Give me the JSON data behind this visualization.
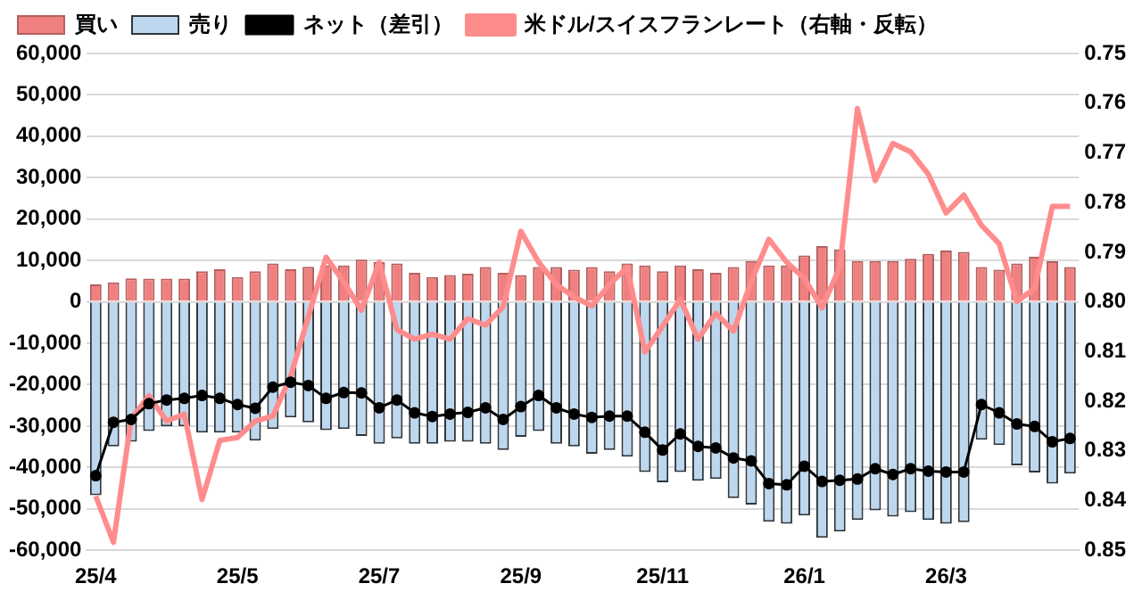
{
  "chart_data": {
    "type": "bar",
    "stacked": true,
    "legend": "top",
    "grid": "y",
    "categories": [
      "25/4",
      null,
      null,
      null,
      null,
      null,
      null,
      null,
      "25/5",
      null,
      null,
      null,
      null,
      null,
      null,
      null,
      "25/7",
      null,
      null,
      null,
      null,
      null,
      null,
      null,
      "25/9",
      null,
      null,
      null,
      null,
      null,
      null,
      null,
      "25/11",
      null,
      null,
      null,
      null,
      null,
      null,
      null,
      "26/1",
      null,
      null,
      null,
      null,
      null,
      null,
      null,
      "26/3",
      null,
      null,
      null,
      null,
      null,
      null,
      null
    ],
    "ylim": [
      -60000,
      60000
    ],
    "yticks": [
      {
        "value": -60000,
        "label": "-60,000"
      },
      {
        "value": -50000,
        "label": "-50,000"
      },
      {
        "value": -40000,
        "label": "-40,000"
      },
      {
        "value": -30000,
        "label": "-30,000"
      },
      {
        "value": -20000,
        "label": "-20,000"
      },
      {
        "value": -10000,
        "label": "-10,000"
      },
      0,
      {
        "value": 10000,
        "label": "10,000"
      },
      {
        "value": 20000,
        "label": "20,000"
      },
      {
        "value": 30000,
        "label": "30,000"
      },
      {
        "value": 40000,
        "label": "40,000"
      },
      {
        "value": 50000,
        "label": "50,000"
      },
      {
        "value": 60000,
        "label": "60,000"
      }
    ],
    "y2lim": [
      0.85,
      0.75
    ],
    "y2ticks": [
      0.75,
      0.76,
      0.77,
      0.78,
      0.79,
      {
        "value": 0.8,
        "label": "0.80"
      },
      0.81,
      0.82,
      0.83,
      0.84,
      0.85
    ],
    "series": [
      {
        "name": "買い",
        "color": "#f08080",
        "values": [
          4200,
          4700,
          5700,
          5600,
          5600,
          5600,
          7400,
          7900,
          6000,
          7400,
          9300,
          7900,
          8500,
          8800,
          8800,
          10200,
          9600,
          9300,
          7000,
          6000,
          6500,
          6800,
          8400,
          7000,
          6500,
          8400,
          8400,
          7800,
          8400,
          7400,
          9300,
          8800,
          7400,
          8800,
          7900,
          7000,
          8400,
          9900,
          8800,
          8800,
          11200,
          13500,
          12700,
          9900,
          9900,
          9900,
          10400,
          11600,
          12400,
          12100,
          8400,
          7800,
          9300,
          10900,
          9800,
          8400
        ]
      },
      {
        "name": "売り",
        "color": "#bdd7ee",
        "values": [
          -46700,
          -34900,
          -33800,
          -31200,
          -30100,
          -30100,
          -31600,
          -31600,
          -31600,
          -33500,
          -30700,
          -27900,
          -29100,
          -31000,
          -30700,
          -32400,
          -34300,
          -33000,
          -34300,
          -34300,
          -33800,
          -33800,
          -34300,
          -35800,
          -32600,
          -31200,
          -34300,
          -34900,
          -36700,
          -35800,
          -37400,
          -41100,
          -43600,
          -41100,
          -43200,
          -42800,
          -47400,
          -49000,
          -53100,
          -53600,
          -51600,
          -57000,
          -55500,
          -52700,
          -50400,
          -51900,
          -50800,
          -52700,
          -53600,
          -53200,
          -33300,
          -34600,
          -39500,
          -41200,
          -43900,
          -41500
        ]
      },
      {
        "name": "ネット（差引）",
        "type": "line",
        "marker": "circle",
        "color": "#000000",
        "values": [
          -42000,
          -29100,
          -28400,
          -24600,
          -23700,
          -23300,
          -22600,
          -23300,
          -24800,
          -25700,
          -20600,
          -19400,
          -20200,
          -23300,
          -21900,
          -22000,
          -25600,
          -23700,
          -26800,
          -27700,
          -27100,
          -26700,
          -25600,
          -28400,
          -25300,
          -22600,
          -25600,
          -27100,
          -27900,
          -27600,
          -27600,
          -31500,
          -35800,
          -31900,
          -34900,
          -35300,
          -37700,
          -38400,
          -43900,
          -44200,
          -39700,
          -43400,
          -43100,
          -42800,
          -40300,
          -41700,
          -40300,
          -40900,
          -41100,
          -41100,
          -24800,
          -26800,
          -29500,
          -30100,
          -33800,
          -33000
        ]
      },
      {
        "name": "米ドル/スイスフランレート（右軸・反転）",
        "type": "line",
        "marker": "none",
        "axis": "y2",
        "color": "#ff8c8c",
        "values": [
          0.8391,
          0.8484,
          0.8236,
          0.8189,
          0.824,
          0.8226,
          0.8398,
          0.8279,
          0.8273,
          0.824,
          0.823,
          0.815,
          0.803,
          0.791,
          0.796,
          0.8017,
          0.792,
          0.8056,
          0.8075,
          0.8065,
          0.8075,
          0.8034,
          0.8047,
          0.801,
          0.7858,
          0.792,
          0.7965,
          0.799,
          0.8008,
          0.7965,
          0.793,
          0.8101,
          0.8049,
          0.7995,
          0.8075,
          0.8023,
          0.8059,
          0.7959,
          0.7874,
          0.792,
          0.7953,
          0.8012,
          0.793,
          0.7611,
          0.7756,
          0.7681,
          0.7698,
          0.7743,
          0.7821,
          0.7785,
          0.7846,
          0.7883,
          0.7999,
          0.7973,
          0.7808,
          0.7808
        ]
      }
    ]
  }
}
